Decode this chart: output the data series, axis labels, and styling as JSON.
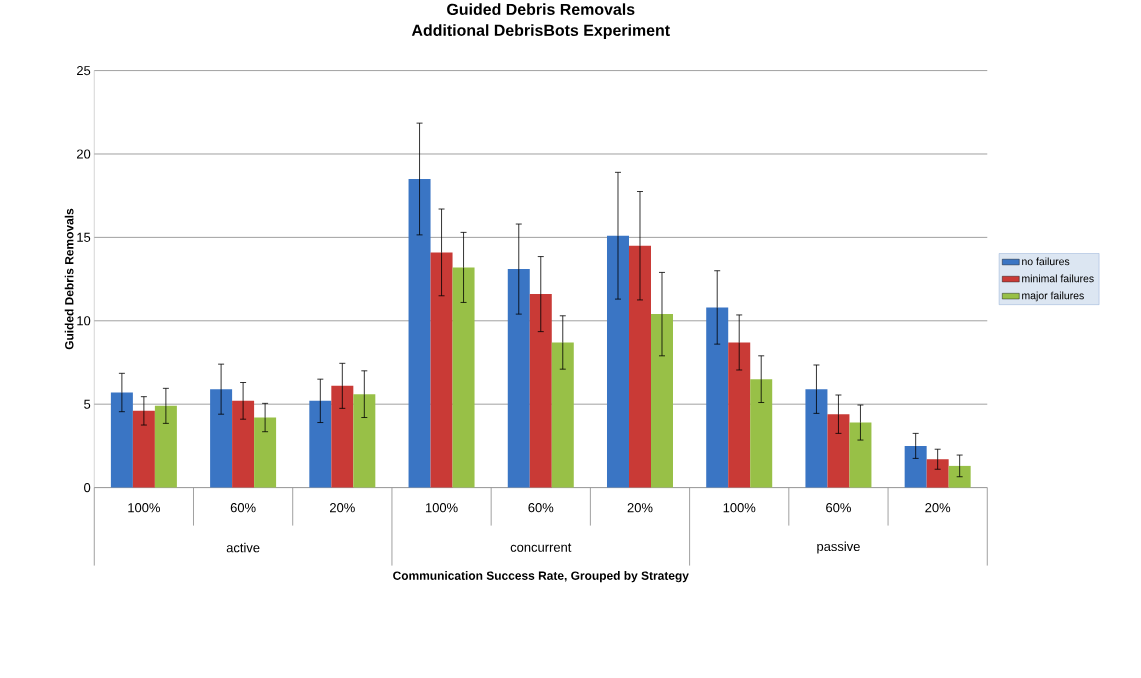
{
  "chart_data": {
    "type": "bar",
    "title": "Guided Debris Removals",
    "subtitle": "Additional DebrisBots Experiment",
    "xlabel": "Communication Success Rate, Grouped by Strategy",
    "ylabel": "Guided Debris Removals",
    "categories": [
      "100%",
      "60%",
      "20%",
      "100%",
      "60%",
      "20%",
      "100%",
      "60%",
      "20%"
    ],
    "annotations": [
      "active",
      "concurrent",
      "passive"
    ],
    "series": [
      {
        "name": "no failures",
        "color": "#3a75c4",
        "values": [
          5.7,
          5.9,
          5.2,
          18.5,
          13.1,
          15.1,
          10.8,
          5.9,
          2.5
        ],
        "errors": [
          1.15,
          1.5,
          1.3,
          3.35,
          2.7,
          3.8,
          2.2,
          1.45,
          0.75
        ]
      },
      {
        "name": "minimal failures",
        "color": "#c93a36",
        "values": [
          4.6,
          5.2,
          6.1,
          14.1,
          11.6,
          14.5,
          8.7,
          4.4,
          1.7
        ],
        "errors": [
          0.85,
          1.1,
          1.35,
          2.6,
          2.25,
          3.25,
          1.65,
          1.15,
          0.6
        ]
      },
      {
        "name": "major failures",
        "color": "#98c047",
        "values": [
          4.9,
          4.2,
          5.6,
          13.2,
          8.7,
          10.4,
          6.5,
          3.9,
          1.3
        ],
        "errors": [
          1.05,
          0.85,
          1.4,
          2.1,
          1.6,
          2.5,
          1.4,
          1.05,
          0.65
        ]
      }
    ],
    "ylim": [
      0,
      25
    ],
    "yticks": [
      0,
      5,
      10,
      15,
      20,
      25
    ],
    "grid": "y",
    "legend": "right"
  }
}
